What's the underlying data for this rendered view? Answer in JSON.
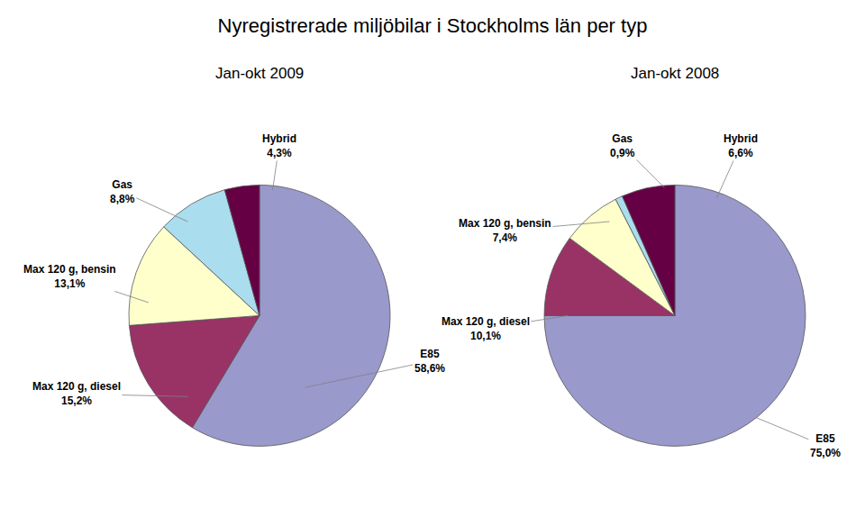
{
  "chart_data": [
    {
      "type": "pie",
      "title": "Nyregistrerade miljöbilar i Stockholms län per typ",
      "subtitle": "Jan-okt 2009",
      "categories": [
        "E85",
        "Max 120 g, diesel",
        "Max 120 g, bensin",
        "Gas",
        "Hybrid"
      ],
      "values": [
        58.6,
        15.2,
        13.1,
        8.8,
        4.3
      ],
      "value_labels": [
        "58,6%",
        "15,2%",
        "13,1%",
        "8,8%",
        "4,3%"
      ],
      "colors": [
        "#9999cc",
        "#993366",
        "#ffffcc",
        "#aaddee",
        "#660044"
      ]
    },
    {
      "type": "pie",
      "subtitle": "Jan-okt 2008",
      "categories": [
        "E85",
        "Max 120 g, diesel",
        "Max 120 g, bensin",
        "Gas",
        "Hybrid"
      ],
      "values": [
        75.0,
        10.1,
        7.4,
        0.9,
        6.6
      ],
      "value_labels": [
        "75,0%",
        "10,1%",
        "7,4%",
        "0,9%",
        "6,6%"
      ],
      "colors": [
        "#9999cc",
        "#993366",
        "#ffffcc",
        "#aaddee",
        "#660044"
      ]
    }
  ]
}
